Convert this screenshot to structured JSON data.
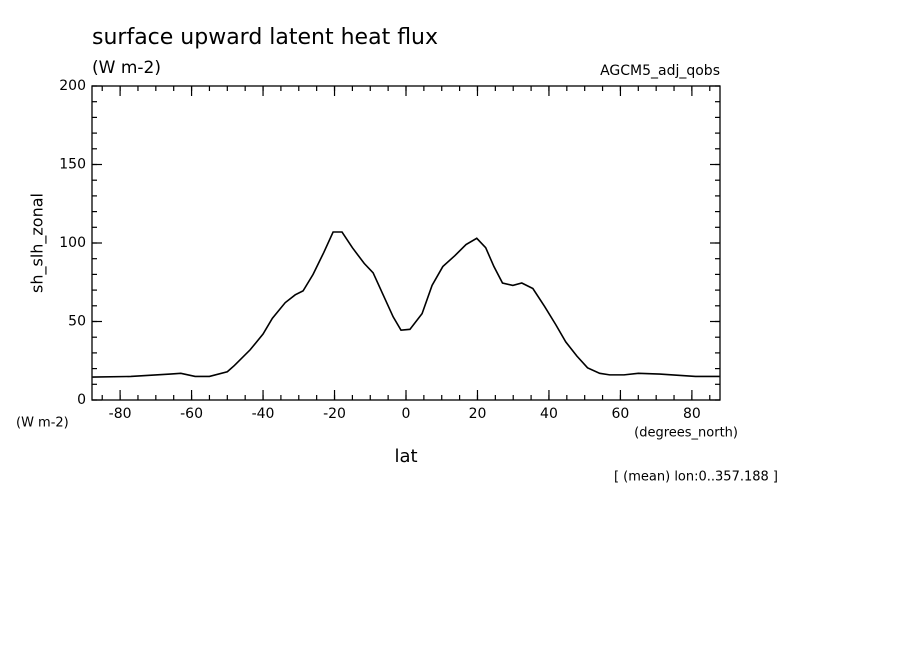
{
  "chart_data": {
    "type": "line",
    "title": "surface upward latent heat flux",
    "subtitle": "(W m-2)",
    "dataset_label": "AGCM5_adj_qobs",
    "y_label": "sh_slh_zonal",
    "y_units": "(W m-2)",
    "x_label": "lat",
    "x_units": "(degrees_north)",
    "annotation": "[ (mean) lon:0..357.188 ]",
    "xlim": [
      -87.86,
      87.86
    ],
    "ylim": [
      0,
      200
    ],
    "xticks": [
      -80,
      -60,
      -40,
      -20,
      0,
      20,
      40,
      60,
      80
    ],
    "yticks": [
      0,
      50,
      100,
      150,
      200
    ],
    "series": [
      {
        "color": "#000000",
        "x": [
          -87.7,
          -77,
          -66,
          -63,
          -59,
          -55,
          -50,
          -48,
          -43.6,
          -40,
          -37.4,
          -33.8,
          -31,
          -28.8,
          -26,
          -23,
          -20.4,
          -17.9,
          -15,
          -11.7,
          -9.2,
          -6.4,
          -3.6,
          -1.4,
          1.1,
          4.5,
          7.3,
          10.3,
          13.7,
          16.8,
          19.8,
          22.3,
          24.6,
          27,
          29.9,
          32.4,
          35.5,
          38.8,
          41.9,
          44.7,
          47.8,
          50.8,
          54.2,
          57,
          61,
          65,
          71,
          81,
          87.7
        ],
        "values": [
          14.6,
          15,
          16.5,
          17,
          15,
          15,
          18,
          22,
          32,
          42,
          52,
          62,
          67,
          69.5,
          80,
          94,
          107,
          107,
          97,
          87,
          81,
          67,
          53,
          44.5,
          45,
          55,
          73,
          85,
          92,
          99,
          103,
          97,
          85,
          74.5,
          73,
          74.5,
          71,
          59.5,
          48,
          37,
          28,
          20.5,
          17,
          16,
          16,
          17,
          16.5,
          15,
          15
        ]
      }
    ]
  }
}
